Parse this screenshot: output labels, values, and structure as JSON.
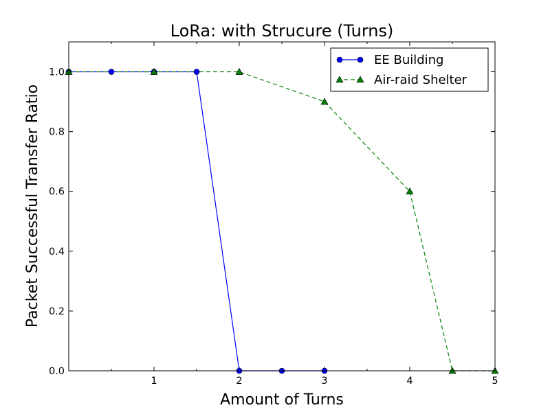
{
  "chart_data": {
    "type": "line",
    "title": "LoRa: with Strucure (Turns)",
    "xlabel": "Amount of Turns",
    "ylabel": "Packet Successful Transfer Ratio",
    "xlim": [
      0,
      5
    ],
    "ylim": [
      0,
      1.1
    ],
    "xticks": [
      1,
      2,
      3,
      4,
      5
    ],
    "xtick_labels": [
      "1",
      "2",
      "3",
      "4",
      "5"
    ],
    "xticks_minor": [
      0.5,
      1.5,
      2.5,
      3.5,
      4.5
    ],
    "yticks": [
      0.0,
      0.2,
      0.4,
      0.6,
      0.8,
      1.0
    ],
    "ytick_labels": [
      "0.0",
      "0.2",
      "0.4",
      "0.6",
      "0.8",
      "1.0"
    ],
    "grid": false,
    "legend_position": "top-right",
    "series": [
      {
        "name": "EE Building",
        "color": "#0000ff",
        "marker": "circle",
        "linestyle": "solid",
        "x": [
          0,
          0.5,
          1,
          1.5,
          2,
          2.5,
          3
        ],
        "y": [
          1.0,
          1.0,
          1.0,
          1.0,
          0.0,
          0.0,
          0.0
        ]
      },
      {
        "name": "Air-raid Shelter",
        "color": "#007f00",
        "marker": "triangle",
        "linestyle": "dashed",
        "x": [
          0,
          1,
          2,
          3,
          4,
          4.5,
          5
        ],
        "y": [
          1.0,
          1.0,
          1.0,
          0.9,
          0.6,
          0.0,
          0.0
        ]
      }
    ]
  }
}
